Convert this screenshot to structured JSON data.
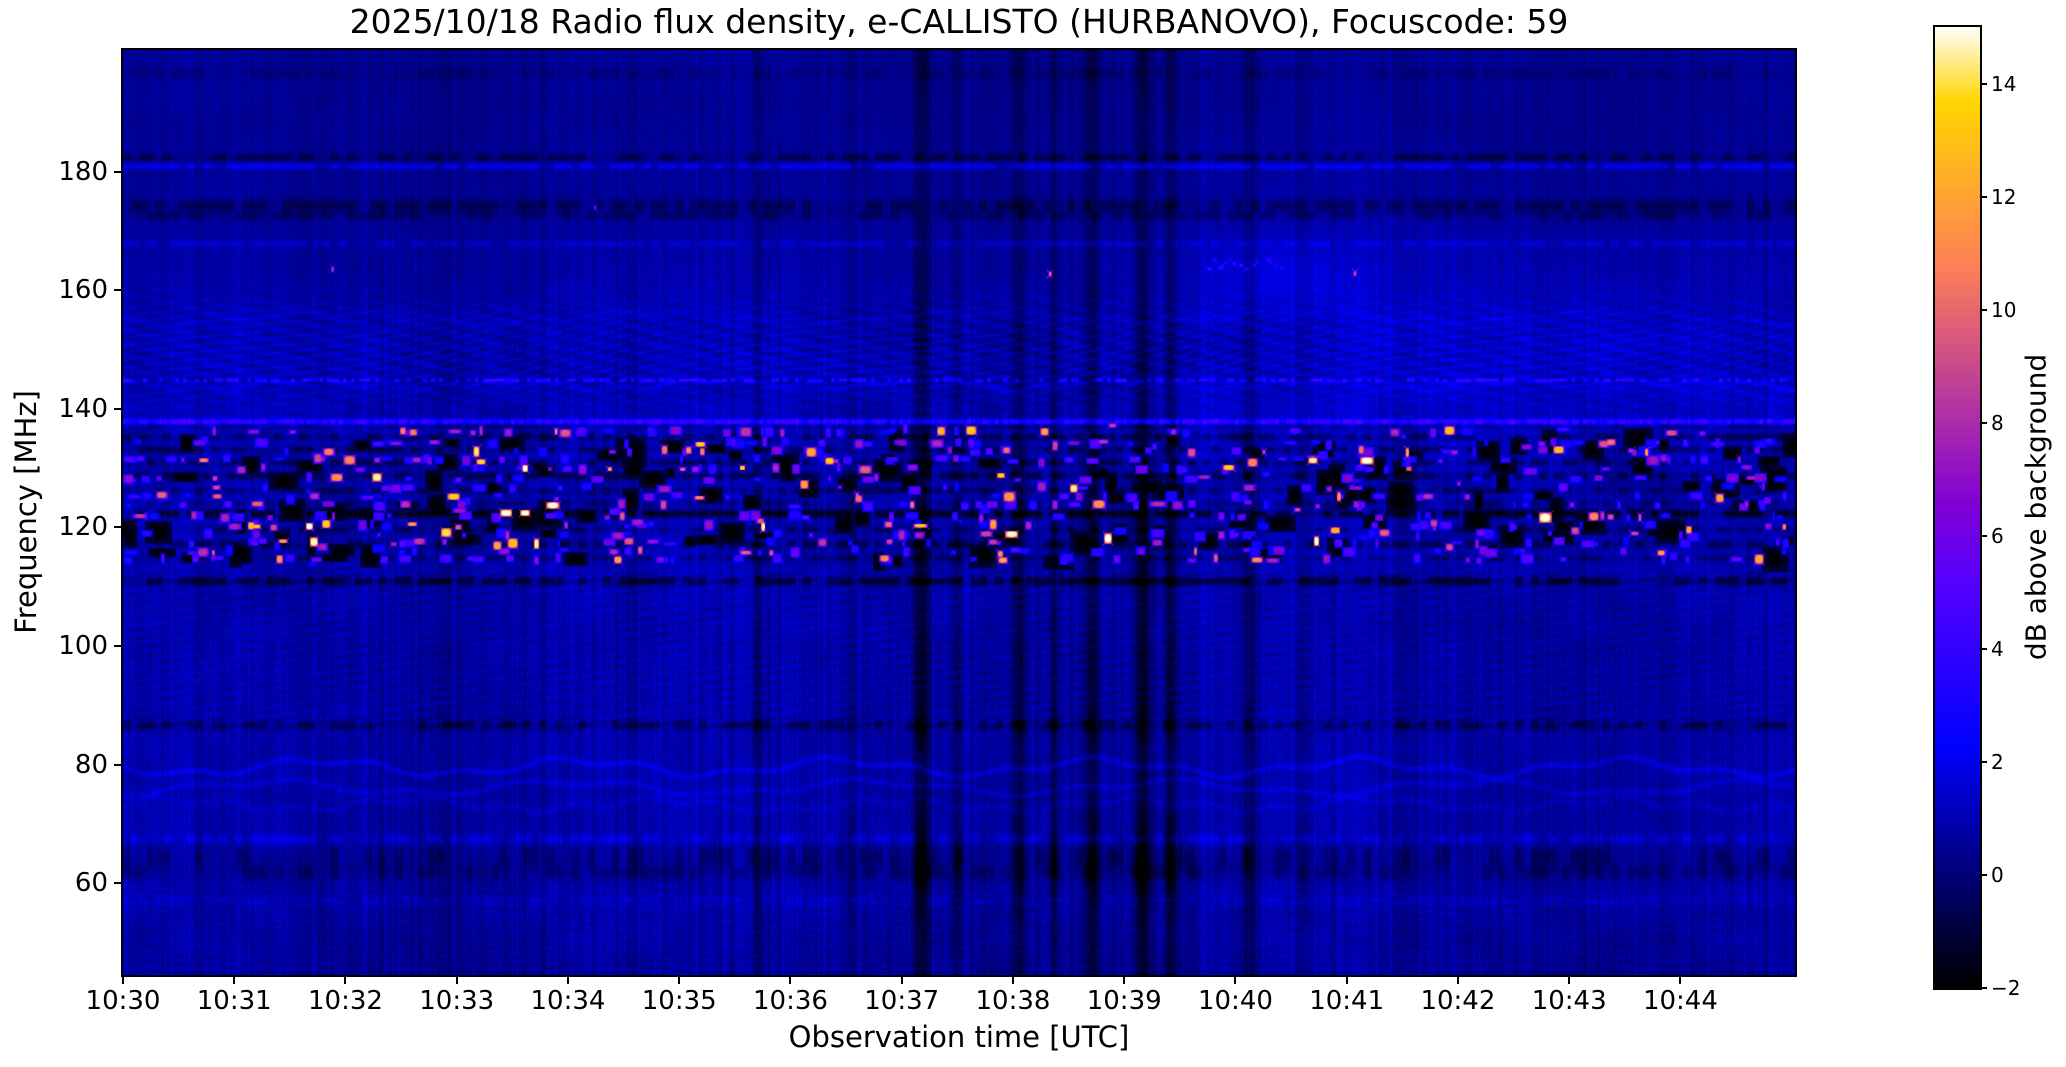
{
  "chart_data": {
    "type": "heatmap",
    "subtype": "radio-spectrogram",
    "title": "2025/10/18  Radio flux density, e-CALLISTO (HURBANOVO), Focuscode: 59",
    "xlabel": "Observation time [UTC]",
    "ylabel": "Frequency [MHz]",
    "x_axis": {
      "start": "10:30",
      "end": "10:45",
      "total_minutes": 15.03,
      "tick_labels": [
        "10:30",
        "10:31",
        "10:32",
        "10:33",
        "10:34",
        "10:35",
        "10:36",
        "10:37",
        "10:38",
        "10:39",
        "10:40",
        "10:41",
        "10:42",
        "10:43",
        "10:44"
      ]
    },
    "y_axis": {
      "min": 44.5,
      "max": 200.5,
      "unit": "MHz",
      "tick_values": [
        180,
        160,
        140,
        120,
        100,
        80,
        60
      ]
    },
    "colorbar": {
      "label": "dB above background",
      "min": -2,
      "max": 15,
      "colormap": "gnuplot2",
      "ticks": [
        {
          "value": 14,
          "label": "14"
        },
        {
          "value": 12,
          "label": "12"
        },
        {
          "value": 10,
          "label": "10"
        },
        {
          "value": 8,
          "label": "8"
        },
        {
          "value": 6,
          "label": "6"
        },
        {
          "value": 4,
          "label": "4"
        },
        {
          "value": 2,
          "label": "2"
        },
        {
          "value": 0,
          "label": "0"
        },
        {
          "value": -2,
          "label": "−2"
        }
      ]
    },
    "background_db": 0.8,
    "features": {
      "dark_rows": [
        {
          "f": 196.5,
          "depth": 0.5,
          "sigma": 0.6,
          "dash": 0.5
        },
        {
          "f": 182.4,
          "depth": 1.2,
          "sigma": 0.45,
          "dash": 0.45
        },
        {
          "f": 174.2,
          "depth": 1.1,
          "sigma": 0.8,
          "dash": 0.35
        },
        {
          "f": 172.5,
          "depth": 0.9,
          "sigma": 0.5,
          "dash": 0.5
        },
        {
          "f": 137.0,
          "depth": 1.0,
          "sigma": 0.3,
          "dash": 0.4
        },
        {
          "f": 135.2,
          "depth": 1.6,
          "sigma": 0.4,
          "dash": 0.45
        },
        {
          "f": 133.1,
          "depth": 1.5,
          "sigma": 0.4,
          "dash": 0.5
        },
        {
          "f": 130.9,
          "depth": 1.4,
          "sigma": 0.4,
          "dash": 0.5
        },
        {
          "f": 128.7,
          "depth": 1.6,
          "sigma": 0.45,
          "dash": 0.45
        },
        {
          "f": 126.2,
          "depth": 1.2,
          "sigma": 0.4,
          "dash": 0.5
        },
        {
          "f": 124.0,
          "depth": 1.0,
          "sigma": 0.35,
          "dash": 0.55
        },
        {
          "f": 122.3,
          "depth": 2.3,
          "sigma": 0.5,
          "dash": 0.22
        },
        {
          "f": 119.6,
          "depth": 1.2,
          "sigma": 0.4,
          "dash": 0.5
        },
        {
          "f": 117.1,
          "depth": 1.5,
          "sigma": 0.45,
          "dash": 0.45
        },
        {
          "f": 114.8,
          "depth": 1.0,
          "sigma": 0.4,
          "dash": 0.5
        },
        {
          "f": 110.9,
          "depth": 1.9,
          "sigma": 0.5,
          "dash": 0.3
        },
        {
          "f": 86.6,
          "depth": 1.4,
          "sigma": 0.55,
          "dash": 0.5
        },
        {
          "f": 64.3,
          "depth": 1.0,
          "sigma": 1.6,
          "dash": 0.65
        },
        {
          "f": 61.7,
          "depth": 0.8,
          "sigma": 0.9,
          "dash": 0.6
        }
      ],
      "bright_rows": [
        {
          "f": 180.9,
          "amp": 1.6,
          "sigma": 0.35,
          "dash": 0.22
        },
        {
          "f": 167.8,
          "amp": 0.8,
          "sigma": 0.4,
          "dash": 0.3
        },
        {
          "f": 137.8,
          "amp": 3.0,
          "sigma": 0.35,
          "dash": 0
        },
        {
          "f": 67.4,
          "amp": 1.0,
          "sigma": 0.6,
          "dash": 0.5
        },
        {
          "f": 57.0,
          "amp": 0.5,
          "sigma": 0.6,
          "dash": 0.5
        }
      ],
      "dotted_row": {
        "f": 144.8,
        "amp": 2.6
      },
      "wavy_rows": [
        {
          "f": 79.6,
          "amp": 1.0,
          "a1": 7,
          "p1": 260,
          "a2": 3.5,
          "p2": 90
        },
        {
          "f": 76.2,
          "amp": 0.7,
          "a1": 6,
          "p1": 300,
          "a2": 3,
          "p2": 110
        },
        {
          "f": 73.3,
          "amp": 0.45,
          "a1": 5,
          "p1": 240,
          "a2": 3,
          "p2": 70
        },
        {
          "f": 144.1,
          "amp": 0.5,
          "a1": 4,
          "p1": 200,
          "a2": 2,
          "p2": 60
        },
        {
          "f": 155.5,
          "amp": 0.35,
          "a1": 5,
          "p1": 320,
          "a2": 2.5,
          "p2": 80
        }
      ],
      "ripple_bands": [
        {
          "f_min": 136.5,
          "f_max": 162,
          "amp": 0.42,
          "amp2": 0.28
        },
        {
          "f_min": 86,
          "f_max": 113,
          "amp": 0.22
        },
        {
          "f_min": 40,
          "f_max": 60,
          "amp": 0.18
        }
      ],
      "airband": {
        "f_min": 113.5,
        "f_max": 137,
        "rows": [
          136.2,
          134.3,
          132.9,
          131.5,
          130.0,
          128.3,
          126.8,
          125.3,
          123.8,
          121.9,
          120.4,
          118.9,
          117.5,
          116.0,
          114.7
        ]
      },
      "vertical_bands": [
        {
          "t": 2.9,
          "depth": 0.4,
          "sigma": 0.03
        },
        {
          "t": 4.6,
          "depth": 0.45,
          "sigma": 0.03
        },
        {
          "t": 5.7,
          "depth": 1.1,
          "sigma": 0.03
        },
        {
          "t": 6.55,
          "depth": 0.6,
          "sigma": 0.04
        },
        {
          "t": 7.18,
          "depth": 2.1,
          "sigma": 0.05
        },
        {
          "t": 7.5,
          "depth": 0.9,
          "sigma": 0.035
        },
        {
          "t": 8.06,
          "depth": 1.5,
          "sigma": 0.045
        },
        {
          "t": 8.37,
          "depth": 1.1,
          "sigma": 0.032
        },
        {
          "t": 8.72,
          "depth": 1.6,
          "sigma": 0.045
        },
        {
          "t": 9.17,
          "depth": 2.0,
          "sigma": 0.055
        },
        {
          "t": 9.42,
          "depth": 1.9,
          "sigma": 0.048
        },
        {
          "t": 10.12,
          "depth": 1.2,
          "sigma": 0.055
        },
        {
          "t": 10.62,
          "depth": 0.7,
          "sigma": 0.045
        },
        {
          "t": 11.5,
          "depth": 0.55,
          "sigma": 0.06
        }
      ],
      "soft_patches": [
        {
          "t": 11.3,
          "f": 153,
          "st": 1.8,
          "sf": 16,
          "amp": 0.5
        },
        {
          "t": 10.3,
          "f": 163,
          "st": 0.5,
          "sf": 4,
          "amp": 0.6
        },
        {
          "t": 13.3,
          "f": 147,
          "st": 1.5,
          "sf": 10,
          "amp": 0.4
        },
        {
          "t": 2.0,
          "f": 148,
          "st": 1.2,
          "sf": 8,
          "amp": 0.3
        },
        {
          "t": 5.3,
          "f": 150,
          "st": 1.0,
          "sf": 8,
          "amp": 0.3
        }
      ],
      "notable_spots": [
        {
          "t": 3.44,
          "f": 122.5,
          "wt": 0.055,
          "hf": 0.6,
          "amp": 16
        },
        {
          "t": 3.61,
          "f": 122.5,
          "wt": 0.045,
          "hf": 0.55,
          "amp": 15.5
        },
        {
          "t": 3.5,
          "f": 117.4,
          "wt": 0.05,
          "hf": 0.9,
          "amp": 13
        },
        {
          "t": 3.36,
          "f": 117.0,
          "wt": 0.04,
          "hf": 0.8,
          "amp": 12
        },
        {
          "t": 2.9,
          "f": 119.2,
          "wt": 0.05,
          "hf": 0.8,
          "amp": 14
        },
        {
          "t": 8.85,
          "f": 118.2,
          "wt": 0.035,
          "hf": 0.9,
          "amp": 16
        },
        {
          "t": 7.35,
          "f": 136.3,
          "wt": 0.04,
          "hf": 0.8,
          "amp": 12.5
        },
        {
          "t": 7.62,
          "f": 136.4,
          "wt": 0.05,
          "hf": 0.8,
          "amp": 13.5
        },
        {
          "t": 8.28,
          "f": 136.2,
          "wt": 0.04,
          "hf": 0.7,
          "amp": 12
        },
        {
          "t": 6.12,
          "f": 127.3,
          "wt": 0.04,
          "hf": 0.8,
          "amp": 12
        },
        {
          "t": 11.92,
          "f": 136.4,
          "wt": 0.05,
          "hf": 0.8,
          "amp": 13
        },
        {
          "t": 12.78,
          "f": 121.7,
          "wt": 0.06,
          "hf": 0.9,
          "amp": 15
        },
        {
          "t": 13.05,
          "f": 119.5,
          "wt": 0.04,
          "hf": 0.7,
          "amp": 9
        },
        {
          "t": 14.35,
          "f": 125.0,
          "wt": 0.04,
          "hf": 0.8,
          "amp": 12
        },
        {
          "t": 10.15,
          "f": 131.0,
          "wt": 0.05,
          "hf": 0.8,
          "amp": 11
        },
        {
          "t": 9.3,
          "f": 124.0,
          "wt": 0.08,
          "hf": 0.5,
          "amp": 8
        },
        {
          "t": 1.88,
          "f": 163.6,
          "wt": 0.015,
          "hf": 0.5,
          "amp": 8
        },
        {
          "t": 4.24,
          "f": 174.0,
          "wt": 0.012,
          "hf": 0.45,
          "amp": 6
        },
        {
          "t": 8.33,
          "f": 162.8,
          "wt": 0.015,
          "hf": 0.5,
          "amp": 10
        },
        {
          "t": 11.07,
          "f": 162.9,
          "wt": 0.015,
          "hf": 0.5,
          "amp": 9
        }
      ],
      "dash_cluster": {
        "t_min": 9.75,
        "t_max": 10.55,
        "f_min": 163.6,
        "f_max": 165.3,
        "count": 16,
        "amp": 3
      },
      "dark_blob_count": 150,
      "bright_speckle_count": 650
    }
  }
}
